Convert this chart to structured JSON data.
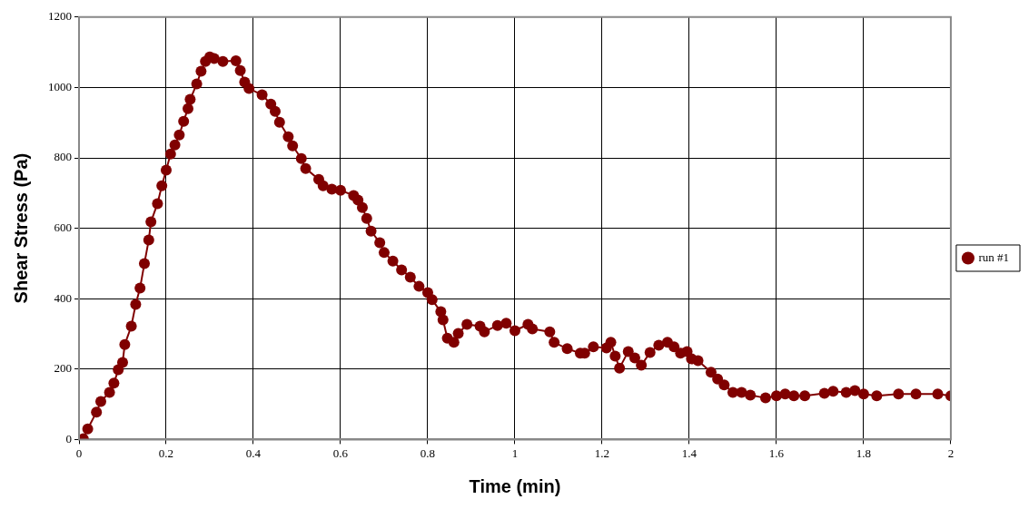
{
  "chart_data": {
    "type": "line",
    "xlabel": "Time (min)",
    "ylabel": "Shear Stress (Pa)",
    "xlim": [
      0,
      2
    ],
    "xticks": [
      0,
      0.2,
      0.4,
      0.6,
      0.8,
      1,
      1.2,
      1.4,
      1.6,
      1.8,
      2
    ],
    "ylim": [
      0,
      1200
    ],
    "yticks": [
      0,
      200,
      400,
      600,
      800,
      1000,
      1200
    ],
    "grid": true,
    "legend": "right",
    "marker": "circle",
    "line_style": "solid",
    "series": [
      {
        "name": "run #1",
        "color": "#800000",
        "x": [
          0,
          0.01,
          0.02,
          0.04,
          0.05,
          0.07,
          0.08,
          0.09,
          0.1,
          0.105,
          0.12,
          0.13,
          0.14,
          0.15,
          0.16,
          0.165,
          0.18,
          0.19,
          0.2,
          0.21,
          0.22,
          0.23,
          0.24,
          0.25,
          0.255,
          0.27,
          0.28,
          0.29,
          0.3,
          0.31,
          0.33,
          0.36,
          0.37,
          0.38,
          0.39,
          0.42,
          0.44,
          0.45,
          0.46,
          0.48,
          0.49,
          0.51,
          0.52,
          0.55,
          0.56,
          0.58,
          0.6,
          0.63,
          0.64,
          0.65,
          0.66,
          0.67,
          0.69,
          0.7,
          0.72,
          0.74,
          0.76,
          0.78,
          0.8,
          0.81,
          0.83,
          0.835,
          0.845,
          0.86,
          0.87,
          0.89,
          0.92,
          0.93,
          0.96,
          0.98,
          1,
          1.03,
          1.04,
          1.08,
          1.09,
          1.12,
          1.15,
          1.16,
          1.18,
          1.21,
          1.22,
          1.23,
          1.24,
          1.26,
          1.275,
          1.29,
          1.31,
          1.33,
          1.35,
          1.365,
          1.38,
          1.395,
          1.405,
          1.42,
          1.45,
          1.465,
          1.48,
          1.5,
          1.52,
          1.54,
          1.575,
          1.6,
          1.62,
          1.64,
          1.665,
          1.71,
          1.73,
          1.76,
          1.78,
          1.8,
          1.83,
          1.88,
          1.92,
          1.97,
          2
        ],
        "values": [
          0,
          2,
          30,
          78,
          108,
          134,
          160,
          198,
          219,
          270,
          322,
          384,
          430,
          500,
          567,
          618,
          670,
          721,
          765,
          811,
          837,
          865,
          904,
          940,
          966,
          1010,
          1046,
          1074,
          1087,
          1082,
          1074,
          1076,
          1048,
          1015,
          997,
          979,
          953,
          932,
          901,
          860,
          834,
          798,
          770,
          739,
          721,
          711,
          708,
          693,
          680,
          659,
          628,
          592,
          559,
          531,
          507,
          482,
          461,
          435,
          417,
          397,
          363,
          340,
          288,
          276,
          301,
          327,
          322,
          306,
          324,
          330,
          309,
          327,
          314,
          306,
          276,
          258,
          245,
          245,
          263,
          260,
          276,
          237,
          203,
          250,
          232,
          211,
          247,
          268,
          276,
          263,
          245,
          250,
          229,
          224,
          191,
          172,
          155,
          134,
          134,
          126,
          118,
          124,
          129,
          124,
          124,
          131,
          137,
          134,
          139,
          129,
          124,
          129,
          129,
          129,
          124
        ]
      }
    ]
  }
}
